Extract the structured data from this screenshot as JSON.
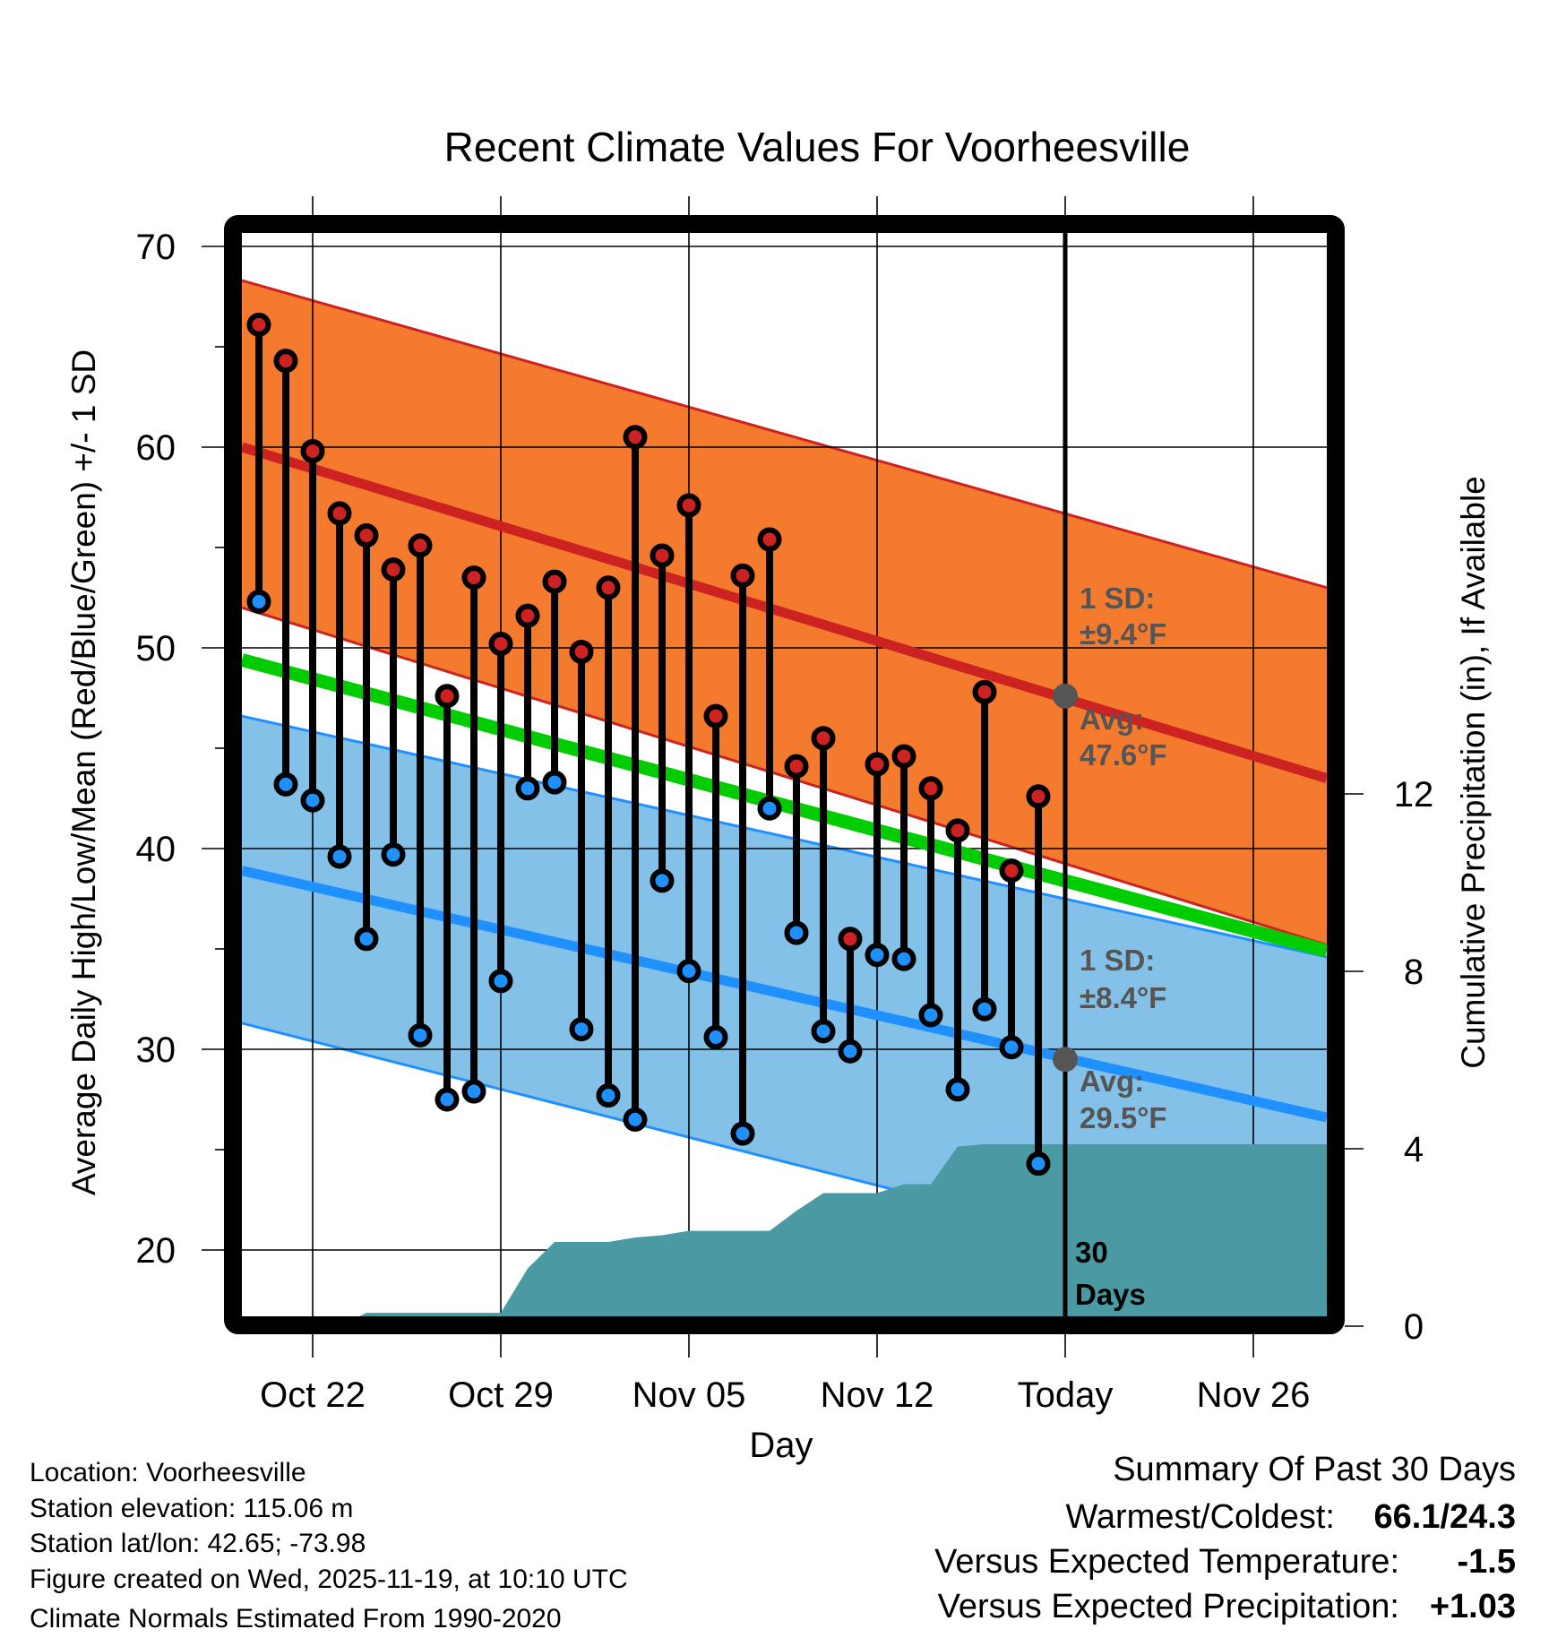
{
  "chart_data": {
    "type": "line",
    "title": "Recent Climate Values For Voorheesville",
    "xlabel": "Day",
    "ylabel": "Average Daily High/Low/Mean (Red/Blue/Green) +/- 1 SD",
    "ylabel_right": "Cumulative Precipitation (in), If Available",
    "ylim": [
      16.7,
      71
    ],
    "ylim_right": [
      0,
      16
    ],
    "xlim_days_from_oct20": [
      -0.63,
      39.73
    ],
    "x_ticks": [
      {
        "day": 2,
        "label": "Oct 22"
      },
      {
        "day": 9,
        "label": "Oct 29"
      },
      {
        "day": 16,
        "label": "Nov 05"
      },
      {
        "day": 23,
        "label": "Nov 12"
      },
      {
        "day": 30,
        "label": "Today"
      },
      {
        "day": 37,
        "label": "Nov 26"
      }
    ],
    "y_ticks": [
      "20",
      "30",
      "40",
      "50",
      "60",
      "70"
    ],
    "y_ticks_right": [
      "0",
      "4",
      "8",
      "12"
    ],
    "grid": true,
    "dates": [
      "Oct 20",
      "Oct 21",
      "Oct 22",
      "Oct 23",
      "Oct 24",
      "Oct 25",
      "Oct 26",
      "Oct 27",
      "Oct 28",
      "Oct 29",
      "Oct 30",
      "Oct 31",
      "Nov 01",
      "Nov 02",
      "Nov 03",
      "Nov 04",
      "Nov 05",
      "Nov 06",
      "Nov 07",
      "Nov 08",
      "Nov 09",
      "Nov 10",
      "Nov 11",
      "Nov 12",
      "Nov 13",
      "Nov 14",
      "Nov 15",
      "Nov 16",
      "Nov 17",
      "Nov 18"
    ],
    "series": [
      {
        "name": "Daily High",
        "color": "#cc2222",
        "values": [
          66.1,
          64.3,
          59.8,
          56.7,
          55.6,
          53.9,
          55.1,
          47.6,
          53.5,
          50.2,
          51.6,
          53.3,
          49.8,
          53.0,
          60.5,
          54.6,
          57.1,
          46.6,
          53.6,
          55.4,
          44.1,
          45.5,
          35.5,
          44.2,
          44.6,
          43.0,
          40.9,
          47.8,
          38.9,
          42.6
        ]
      },
      {
        "name": "Daily Low",
        "color": "#1e90ff",
        "values": [
          52.3,
          43.2,
          42.4,
          39.6,
          35.5,
          39.7,
          30.7,
          27.5,
          27.9,
          33.4,
          43.0,
          43.3,
          31.0,
          27.7,
          26.5,
          38.4,
          33.9,
          30.6,
          25.8,
          42.0,
          35.8,
          30.9,
          29.9,
          34.7,
          34.5,
          31.7,
          28.0,
          32.0,
          30.1,
          24.3
        ]
      },
      {
        "name": "Cumulative Precipitation (in)",
        "color": "#4a9aa3",
        "values": [
          0,
          0,
          0,
          0,
          0.3,
          0.3,
          0.3,
          0.3,
          0.3,
          0.3,
          1.3,
          1.9,
          1.9,
          1.9,
          2.0,
          2.05,
          2.15,
          2.15,
          2.15,
          2.15,
          2.6,
          3.0,
          3.0,
          3.0,
          3.2,
          3.2,
          4.05,
          4.1,
          4.1,
          4.1
        ],
        "extend_to_end": 4.1
      }
    ],
    "normals": {
      "high_plus_sd": [
        68.3,
        53.0
      ],
      "high_avg": [
        60.0,
        43.5
      ],
      "high_minus_sd": [
        52.0,
        35.2
      ],
      "mean_avg": [
        49.4,
        34.9
      ],
      "low_plus_sd": [
        46.6,
        34.6
      ],
      "low_avg": [
        38.9,
        26.6
      ],
      "low_minus_sd": [
        31.3,
        17.5
      ]
    },
    "colors": {
      "high_band": "#f47a2e",
      "high_line": "#cc2222",
      "mean_line": "#00cc00",
      "low_band": "#84c1e8",
      "low_line": "#1e90ff",
      "precip": "#4a9aa3",
      "today_marker": "#555555"
    },
    "today_markers": [
      47.6,
      29.5
    ],
    "annotations": {
      "high_sd_label": "1 SD:",
      "high_sd_value": "±9.4°F",
      "high_avg_label": "Avg:",
      "high_avg_value": "47.6°F",
      "low_sd_label": "1 SD:",
      "low_sd_value": "±8.4°F",
      "low_avg_label": "Avg:",
      "low_avg_value": "29.5°F",
      "days_num": "30",
      "days_label": "Days"
    }
  },
  "footer": {
    "location": "Location: Voorheesville",
    "elevation": "Station elevation: 115.06 m",
    "latlon": "Station lat/lon: 42.65; -73.98",
    "created": "Figure created on Wed, 2025-11-19, at 10:10 UTC",
    "normals": "Climate Normals Estimated From 1990-2020"
  },
  "summary": {
    "title": "Summary Of Past 30 Days",
    "warmest_coldest_label": "Warmest/Coldest:",
    "warmest_coldest_value": "66.1/24.3",
    "temp_label": "Versus Expected Temperature:",
    "temp_value": "-1.5",
    "temp_color": "#1e90ff",
    "precip_label": "Versus Expected Precipitation:",
    "precip_value": "+1.03",
    "precip_color": "#00bb00"
  }
}
